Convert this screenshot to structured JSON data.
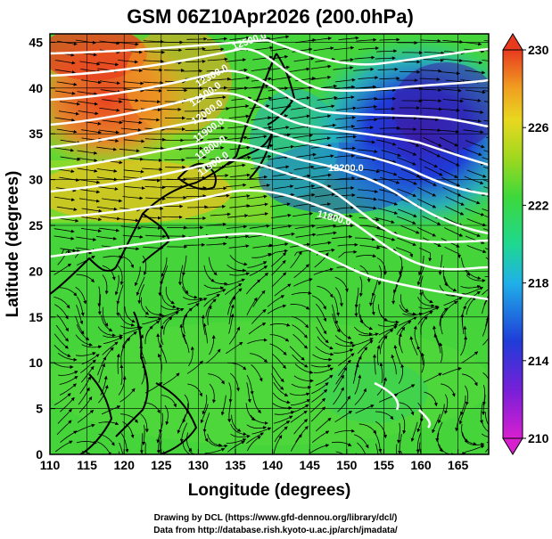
{
  "title": "GSM 06Z10Apr2026 (200.0hPa)",
  "x_axis": {
    "label": "Longitude (degrees)",
    "ticks": [
      "110",
      "115",
      "120",
      "125",
      "130",
      "135",
      "140",
      "145",
      "150",
      "155",
      "160",
      "165"
    ]
  },
  "y_axis": {
    "label": "Latitude (degrees)",
    "ticks": [
      "0",
      "5",
      "10",
      "15",
      "20",
      "25",
      "30",
      "35",
      "40",
      "45"
    ]
  },
  "colorbar": {
    "ticks": [
      "210",
      "214",
      "218",
      "222",
      "226",
      "230"
    ],
    "colors": [
      "#d81fd0",
      "#6a1fd8",
      "#1f38d8",
      "#1fa8e8",
      "#1fd8a8",
      "#38d838",
      "#9ed81f",
      "#e8d81f",
      "#f0a020",
      "#e83a1f"
    ]
  },
  "contours": {
    "labels": [
      "12200.0",
      "11800.0",
      "11900.0",
      "11800.0",
      "11900.0",
      "12000.0",
      "12100.0",
      "12300.0",
      "12500.0"
    ]
  },
  "credits": {
    "line1": "Drawing by DCL (https://www.gfd-dennou.org/library/dcl/)",
    "line2": "Data from http://database.rish.kyoto-u.ac.jp/arch/jmadata/"
  }
}
